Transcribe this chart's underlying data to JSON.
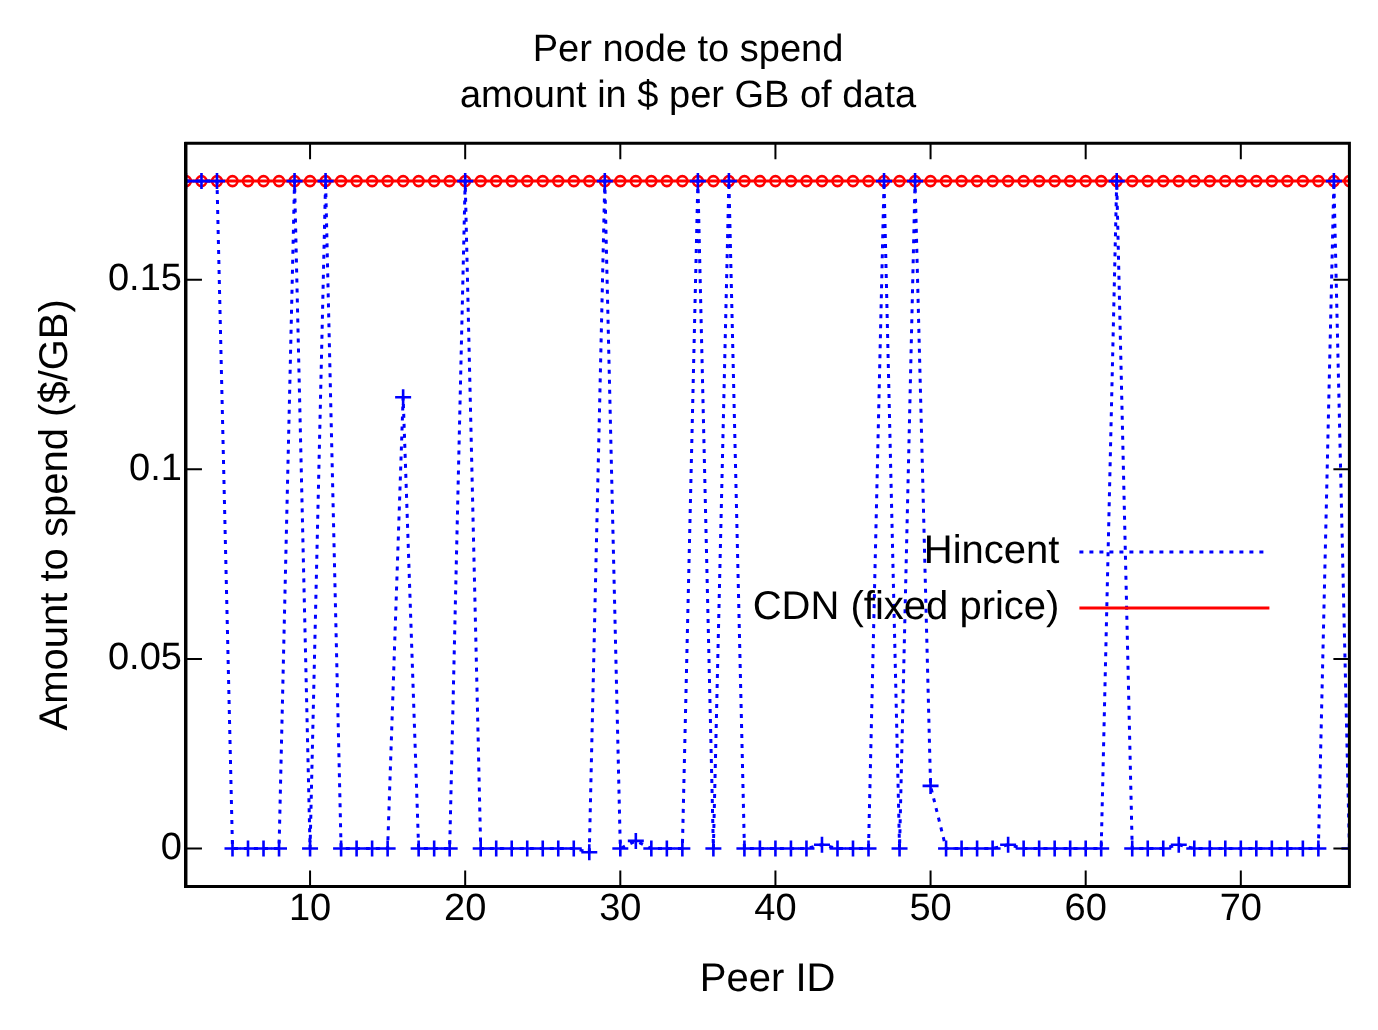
{
  "chart_data": {
    "type": "line",
    "title": "Per node to spend\namount in $ per GB of data",
    "xlabel": "Peer ID",
    "ylabel": "Amount to spend ($/GB)",
    "x": [
      2,
      3,
      4,
      5,
      6,
      7,
      8,
      9,
      10,
      11,
      12,
      13,
      14,
      15,
      16,
      17,
      18,
      19,
      20,
      21,
      22,
      23,
      24,
      25,
      26,
      27,
      28,
      29,
      30,
      31,
      32,
      33,
      34,
      35,
      36,
      37,
      38,
      39,
      40,
      41,
      42,
      43,
      44,
      45,
      46,
      47,
      48,
      49,
      50,
      51,
      52,
      53,
      54,
      55,
      56,
      57,
      58,
      59,
      60,
      61,
      62,
      63,
      64,
      65,
      66,
      67,
      68,
      69,
      70,
      71,
      72,
      73,
      74,
      75,
      76,
      77
    ],
    "series": [
      {
        "name": "Hincent",
        "color": "#0000ff",
        "marker": "cross",
        "line_style": "dotted",
        "values": [
          0.176,
          0.176,
          0.176,
          0,
          0,
          0,
          0,
          0.176,
          0,
          0.176,
          0,
          0,
          0,
          0,
          0.119,
          0,
          0,
          0,
          0.176,
          0,
          0,
          0,
          0,
          0,
          0,
          0,
          -0.001,
          0.176,
          0,
          0.002,
          0,
          0,
          0,
          0.176,
          0,
          0.176,
          0,
          0,
          0,
          0,
          0,
          0.001,
          0,
          0,
          0,
          0.176,
          0,
          0.176,
          0.0165,
          0,
          0,
          0,
          0,
          0.001,
          0,
          0,
          0,
          0,
          0,
          0,
          0.176,
          0,
          0,
          0,
          0.001,
          0,
          0,
          0,
          0,
          0,
          0,
          0,
          0,
          0,
          0.176,
          0
        ]
      },
      {
        "name": "CDN (fixed price)",
        "color": "#ff0000",
        "marker": "circle",
        "line_style": "solid",
        "values": [
          0.176,
          0.176,
          0.176,
          0.176,
          0.176,
          0.176,
          0.176,
          0.176,
          0.176,
          0.176,
          0.176,
          0.176,
          0.176,
          0.176,
          0.176,
          0.176,
          0.176,
          0.176,
          0.176,
          0.176,
          0.176,
          0.176,
          0.176,
          0.176,
          0.176,
          0.176,
          0.176,
          0.176,
          0.176,
          0.176,
          0.176,
          0.176,
          0.176,
          0.176,
          0.176,
          0.176,
          0.176,
          0.176,
          0.176,
          0.176,
          0.176,
          0.176,
          0.176,
          0.176,
          0.176,
          0.176,
          0.176,
          0.176,
          0.176,
          0.176,
          0.176,
          0.176,
          0.176,
          0.176,
          0.176,
          0.176,
          0.176,
          0.176,
          0.176,
          0.176,
          0.176,
          0.176,
          0.176,
          0.176,
          0.176,
          0.176,
          0.176,
          0.176,
          0.176,
          0.176,
          0.176,
          0.176,
          0.176,
          0.176,
          0.176,
          0.176
        ]
      }
    ],
    "xlim": [
      2,
      77
    ],
    "ylim": [
      -0.01,
      0.186
    ],
    "xticks": [
      10,
      20,
      30,
      40,
      50,
      60,
      70
    ],
    "yticks": [
      0,
      0.05,
      0.1,
      0.15
    ],
    "grid": false,
    "legend": "right"
  }
}
